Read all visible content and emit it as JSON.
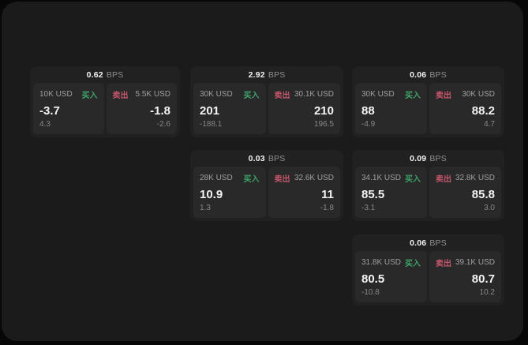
{
  "page": {
    "background": "#070707",
    "panel_background": "#1b1b1b"
  },
  "colors": {
    "card_background": "#212121",
    "tile_background": "#292929",
    "buy_accent": "#3fa26a",
    "sell_accent": "#c4566b",
    "primary_text": "#f3f3f3",
    "secondary_text": "#9f9f9f",
    "tertiary_text": "#878787"
  },
  "labels": {
    "bps": "BPS",
    "buy": "买入",
    "sell": "卖出"
  },
  "cards": [
    {
      "col": 1,
      "row": 1,
      "bps": "0.62",
      "buy": {
        "amount": "10K USD",
        "value": "-3.7",
        "delta": "4.3"
      },
      "sell": {
        "amount": "5.5K USD",
        "value": "-1.8",
        "delta": "-2.6"
      }
    },
    {
      "col": 2,
      "row": 1,
      "bps": "2.92",
      "buy": {
        "amount": "30K USD",
        "value": "201",
        "delta": "-188.1"
      },
      "sell": {
        "amount": "30.1K USD",
        "value": "210",
        "delta": "196.5"
      }
    },
    {
      "col": 3,
      "row": 1,
      "bps": "0.06",
      "buy": {
        "amount": "30K USD",
        "value": "88",
        "delta": "-4.9"
      },
      "sell": {
        "amount": "30K USD",
        "value": "88.2",
        "delta": "4.7"
      }
    },
    {
      "col": 2,
      "row": 2,
      "bps": "0.03",
      "buy": {
        "amount": "28K USD",
        "value": "10.9",
        "delta": "1.3"
      },
      "sell": {
        "amount": "32.6K USD",
        "value": "11",
        "delta": "-1.8"
      }
    },
    {
      "col": 3,
      "row": 2,
      "bps": "0.09",
      "buy": {
        "amount": "34.1K USD",
        "value": "85.5",
        "delta": "-3.1"
      },
      "sell": {
        "amount": "32.8K USD",
        "value": "85.8",
        "delta": "3.0"
      }
    },
    {
      "col": 3,
      "row": 3,
      "bps": "0.06",
      "buy": {
        "amount": "31.8K USD",
        "value": "80.5",
        "delta": "-10.8"
      },
      "sell": {
        "amount": "39.1K USD",
        "value": "80.7",
        "delta": "10.2"
      }
    }
  ]
}
